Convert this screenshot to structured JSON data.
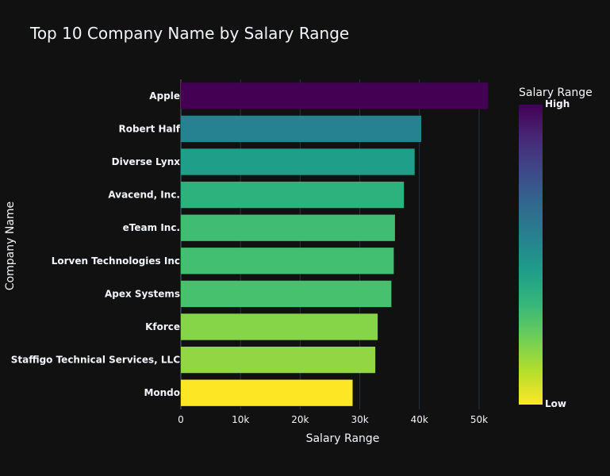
{
  "chart_data": {
    "type": "bar",
    "orientation": "horizontal",
    "title": "Top 10 Company Name by Salary Range",
    "xlabel": "Salary Range",
    "ylabel": "Company Name",
    "xlim": [
      0,
      54000
    ],
    "x_ticks": [
      0,
      10000,
      20000,
      30000,
      40000,
      50000
    ],
    "x_tick_labels": [
      "0",
      "10k",
      "20k",
      "30k",
      "40k",
      "50k"
    ],
    "grid": true,
    "categories": [
      "Apple",
      "Robert Half",
      "Diverse Lynx",
      "Avacend, Inc.",
      "eTeam Inc.",
      "Lorven Technologies Inc",
      "Apex Systems",
      "Kforce",
      "Staffigo Technical Services, LLC",
      "Mondo"
    ],
    "values": [
      51500,
      40300,
      39200,
      37400,
      35900,
      35700,
      35300,
      33000,
      32600,
      28800
    ],
    "bar_colors": [
      "#440154",
      "#26828e",
      "#1f9e89",
      "#2db27d",
      "#40bd72",
      "#43bf71",
      "#48c16e",
      "#86d549",
      "#90d743",
      "#fde725"
    ],
    "colorbar": {
      "title": "Salary Range",
      "high_label": "High",
      "low_label": "Low",
      "colorscale": "viridis"
    }
  }
}
